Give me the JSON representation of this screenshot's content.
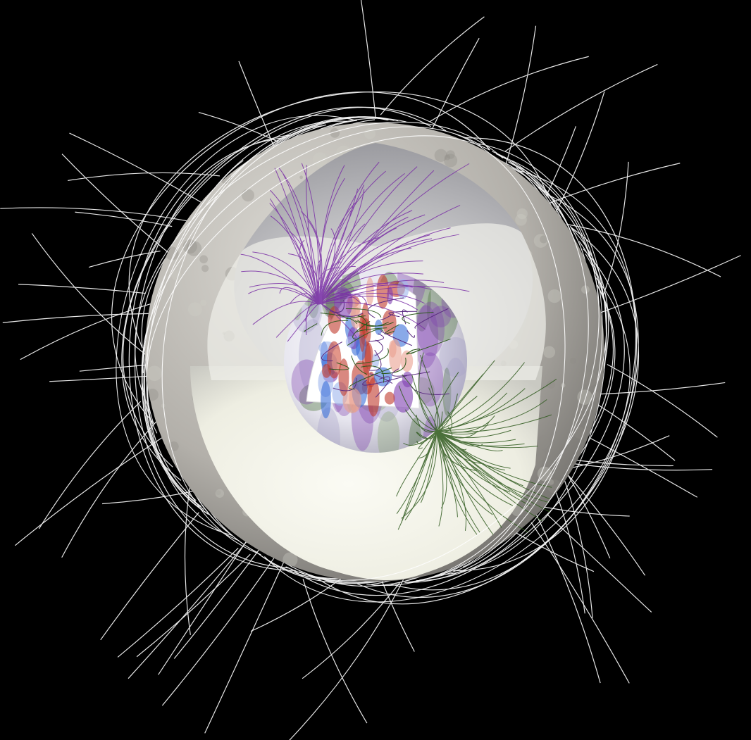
{
  "scene": {
    "background": "#000000",
    "field_line_color": "#ffffff",
    "north_pole_line_color": "#7a2fa6",
    "south_pole_line_color": "#2f5a1e",
    "shell_color": "#bdbab4",
    "shell_shadow_color": "#6d6b67",
    "cavity_color": "#f4f3ea",
    "core_palette": [
      "#c0392b",
      "#3a6fd8",
      "#ffffff",
      "#7e3fb0",
      "#3e6b2a"
    ]
  }
}
